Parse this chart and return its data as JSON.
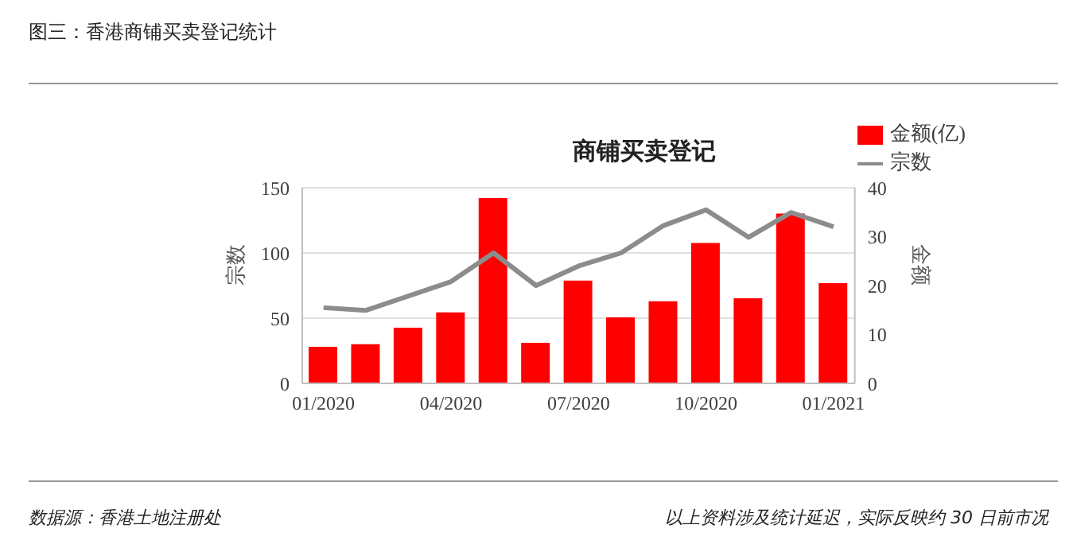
{
  "chart_data": {
    "type": "bar",
    "title": "图三：香港商铺买卖登记统计",
    "subtitle": "商铺买卖登记",
    "ylabel": "宗数",
    "y2label": "金额",
    "categories": [
      "01/2020",
      null,
      null,
      "04/2020",
      null,
      null,
      "07/2020",
      null,
      null,
      "10/2020",
      null,
      null,
      "01/2021"
    ],
    "series": [
      {
        "name": "金额(亿)",
        "axis": "y2",
        "color": "#ff0000",
        "values": [
          7.5,
          8,
          11.4,
          14.5,
          37.9,
          8.3,
          21,
          13.5,
          16.8,
          28.7,
          17.4,
          34.7,
          20.5
        ]
      },
      {
        "name": "宗数",
        "type": "line",
        "color": "#8c8c8c",
        "values": [
          58,
          56,
          67,
          78,
          100,
          75,
          90,
          100,
          121,
          133,
          112,
          131,
          120
        ]
      }
    ],
    "ylim": [
      0,
      150
    ],
    "yticks": [
      0,
      50,
      100,
      150
    ],
    "y2lim": [
      0,
      40
    ],
    "y2ticks": [
      0,
      10,
      20,
      30,
      40
    ],
    "grid": "y",
    "legend": "top right",
    "marker": "none",
    "annotations": [
      "数据源：香港土地注册处",
      "以上资料涉及统计延迟，实际反映约 30 日前市况"
    ]
  }
}
